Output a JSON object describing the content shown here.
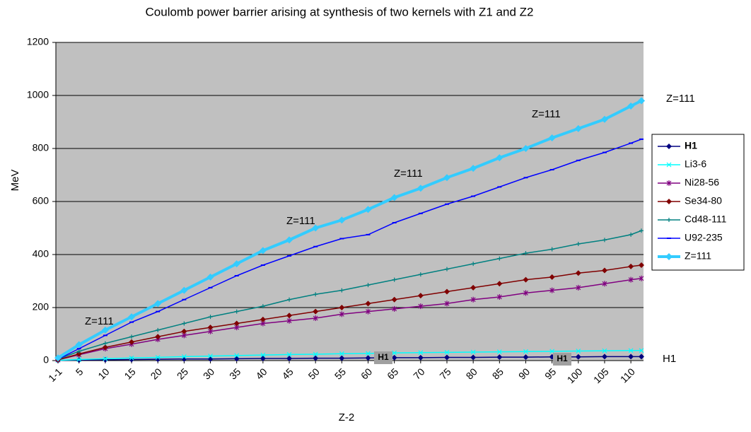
{
  "chart_data": {
    "type": "line",
    "title": "Coulomb power barrier arising at synthesis of two kernels with Z1 and Z2",
    "x_label": "Z-2",
    "y_label": "MeV",
    "x": [
      1,
      5,
      10,
      15,
      20,
      25,
      30,
      35,
      40,
      45,
      50,
      55,
      60,
      65,
      70,
      75,
      80,
      85,
      90,
      95,
      100,
      105,
      110,
      112
    ],
    "xlim": [
      1,
      112
    ],
    "xticks": [
      {
        "value": 1,
        "label": "1-1"
      },
      5,
      10,
      15,
      20,
      25,
      30,
      35,
      40,
      45,
      50,
      55,
      60,
      65,
      70,
      75,
      80,
      85,
      90,
      95,
      100,
      105,
      110
    ],
    "ylim": [
      0,
      1200
    ],
    "yticks": [
      0,
      200,
      400,
      600,
      800,
      1000,
      1200
    ],
    "grid": true,
    "legend": "right",
    "series": [
      {
        "name": "H1",
        "color": "#000080",
        "marker": "diamond",
        "values": [
          1,
          2,
          3,
          4,
          5,
          6,
          6,
          7,
          8,
          8,
          9,
          9,
          10,
          11,
          11,
          12,
          12,
          13,
          13,
          14,
          14,
          15,
          15,
          15
        ]
      },
      {
        "name": "Li3-6",
        "color": "#00ffff",
        "marker": "x",
        "values": [
          1,
          4,
          7,
          10,
          12,
          15,
          17,
          19,
          21,
          23,
          24,
          26,
          27,
          29,
          30,
          31,
          32,
          33,
          34,
          35,
          36,
          37,
          38,
          38
        ]
      },
      {
        "name": "Ni28-56",
        "color": "#800080",
        "marker": "star",
        "values": [
          3,
          22,
          45,
          62,
          80,
          95,
          110,
          125,
          140,
          150,
          160,
          175,
          185,
          195,
          205,
          215,
          230,
          240,
          255,
          265,
          275,
          290,
          305,
          310
        ]
      },
      {
        "name": "Se34-80",
        "color": "#800000",
        "marker": "diamond",
        "values": [
          3,
          25,
          50,
          70,
          90,
          110,
          125,
          140,
          155,
          170,
          185,
          200,
          215,
          230,
          245,
          260,
          275,
          290,
          305,
          315,
          330,
          340,
          355,
          360
        ]
      },
      {
        "name": "Cd48-111",
        "color": "#008080",
        "marker": "plus",
        "values": [
          5,
          35,
          65,
          90,
          115,
          140,
          165,
          185,
          205,
          230,
          250,
          265,
          285,
          305,
          325,
          345,
          365,
          385,
          405,
          420,
          440,
          455,
          475,
          490
        ]
      },
      {
        "name": "U92-235",
        "color": "#0000ff",
        "marker": "dash",
        "values": [
          5,
          45,
          95,
          145,
          185,
          230,
          275,
          320,
          360,
          395,
          430,
          460,
          475,
          520,
          555,
          590,
          620,
          655,
          690,
          720,
          755,
          785,
          820,
          835
        ]
      },
      {
        "name": "Z=111",
        "color": "#33ccff",
        "marker": "diamond",
        "width": 4,
        "values": [
          10,
          60,
          115,
          165,
          215,
          265,
          315,
          365,
          415,
          455,
          500,
          530,
          570,
          615,
          650,
          690,
          725,
          765,
          800,
          840,
          875,
          910,
          960,
          980
        ]
      }
    ],
    "annotations": [
      "Z=111",
      "Z=111",
      "Z=111",
      "Z=111",
      "Z=111",
      "H1",
      "H1",
      "H1"
    ]
  }
}
